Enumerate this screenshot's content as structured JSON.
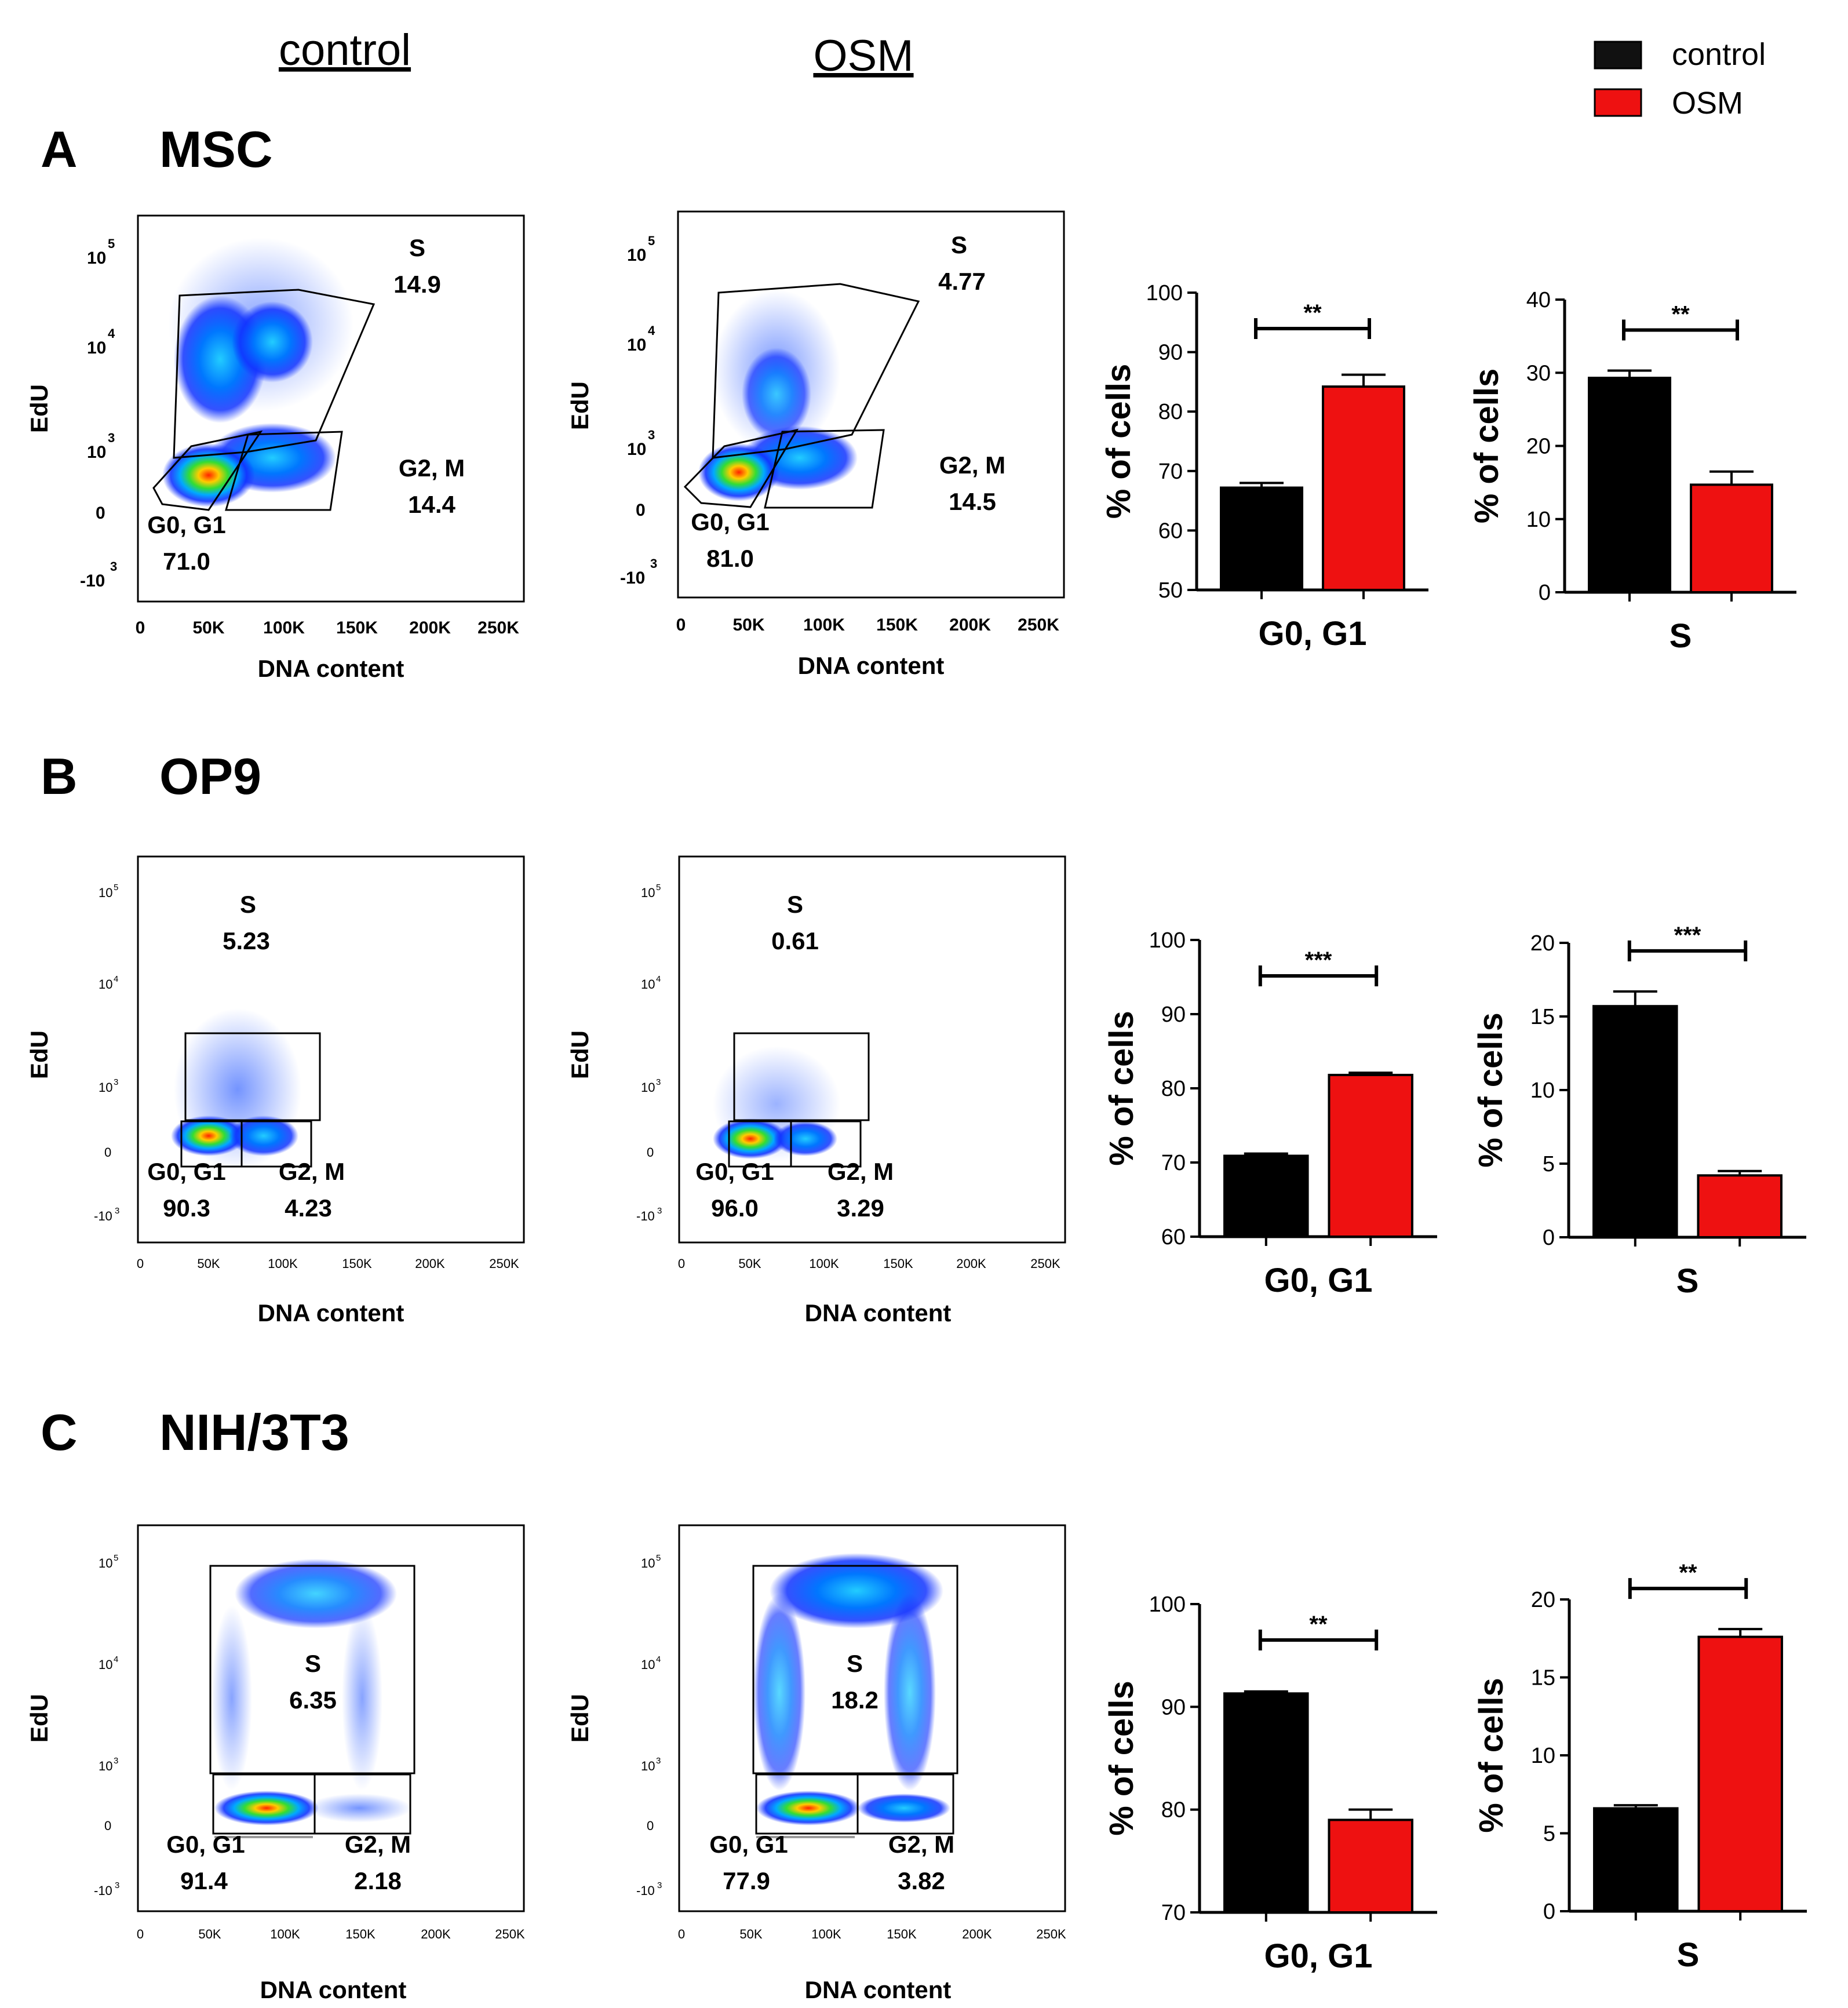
{
  "columns": {
    "control": "control",
    "osm": "OSM"
  },
  "legend": {
    "items": [
      {
        "label": "control",
        "color": "#000000"
      },
      {
        "label": "OSM",
        "color": "#ee1111"
      }
    ]
  },
  "flow": {
    "xlabel": "DNA content",
    "ylabel": "EdU",
    "xticks": [
      "0",
      "50K",
      "100K",
      "150K",
      "200K",
      "250K"
    ]
  },
  "panels": [
    {
      "letter": "A",
      "title": "MSC",
      "flow": [
        {
          "condition": "control",
          "S": "14.9",
          "G2M": "14.4",
          "G0G1": "71.0"
        },
        {
          "condition": "OSM",
          "S": "4.77",
          "G2M": "14.5",
          "G0G1": "81.0"
        }
      ]
    },
    {
      "letter": "B",
      "title": "OP9",
      "flow": [
        {
          "condition": "control",
          "S": "5.23",
          "G2M": "4.23",
          "G0G1": "90.3"
        },
        {
          "condition": "OSM",
          "S": "0.61",
          "G2M": "3.29",
          "G0G1": "96.0"
        }
      ]
    },
    {
      "letter": "C",
      "title": "NIH/3T3",
      "flow": [
        {
          "condition": "control",
          "S": "6.35",
          "G2M": "2.18",
          "G0G1": "91.4"
        },
        {
          "condition": "OSM",
          "S": "18.2",
          "G2M": "3.82",
          "G0G1": "77.9"
        }
      ]
    }
  ],
  "gate_names": {
    "S": "S",
    "G2M": "G2, M",
    "G0G1": "G0, G1"
  },
  "chart_data": [
    {
      "type": "bar",
      "panel": "A",
      "title": "",
      "xlabel": "G0, G1",
      "ylabel": "% of cells",
      "categories": [
        "control",
        "OSM"
      ],
      "values": [
        67.2,
        84.2
      ],
      "errors": [
        0.8,
        2.0
      ],
      "ylim": [
        50,
        100
      ],
      "yticks": [
        50,
        60,
        70,
        80,
        90,
        100
      ],
      "significance": "**"
    },
    {
      "type": "bar",
      "panel": "A",
      "title": "",
      "xlabel": "S",
      "ylabel": "% of cells",
      "categories": [
        "control",
        "OSM"
      ],
      "values": [
        29.3,
        14.7
      ],
      "errors": [
        1.0,
        1.8
      ],
      "ylim": [
        0,
        40
      ],
      "yticks": [
        0,
        10,
        20,
        30,
        40
      ],
      "significance": "**"
    },
    {
      "type": "bar",
      "panel": "B",
      "title": "",
      "xlabel": "G0, G1",
      "ylabel": "% of cells",
      "categories": [
        "control",
        "OSM"
      ],
      "values": [
        70.9,
        81.8
      ],
      "errors": [
        0.3,
        0.3
      ],
      "ylim": [
        60,
        100
      ],
      "yticks": [
        60,
        70,
        80,
        90,
        100
      ],
      "significance": "***"
    },
    {
      "type": "bar",
      "panel": "B",
      "title": "",
      "xlabel": "S",
      "ylabel": "% of cells",
      "categories": [
        "control",
        "OSM"
      ],
      "values": [
        15.7,
        4.2
      ],
      "errors": [
        1.0,
        0.3
      ],
      "ylim": [
        0,
        20
      ],
      "yticks": [
        0,
        5,
        10,
        15,
        20
      ],
      "significance": "***"
    },
    {
      "type": "bar",
      "panel": "C",
      "title": "",
      "xlabel": "G0, G1",
      "ylabel": "% of cells",
      "categories": [
        "control",
        "OSM"
      ],
      "values": [
        91.3,
        79.0
      ],
      "errors": [
        0.2,
        1.0
      ],
      "ylim": [
        70,
        100
      ],
      "yticks": [
        70,
        80,
        90,
        100
      ],
      "significance": "**"
    },
    {
      "type": "bar",
      "panel": "C",
      "title": "",
      "xlabel": "S",
      "ylabel": "% of cells",
      "categories": [
        "control",
        "OSM"
      ],
      "values": [
        6.6,
        17.6
      ],
      "errors": [
        0.2,
        0.5
      ],
      "ylim": [
        0,
        20
      ],
      "yticks": [
        0,
        5,
        10,
        15,
        20
      ],
      "significance": "**"
    }
  ]
}
